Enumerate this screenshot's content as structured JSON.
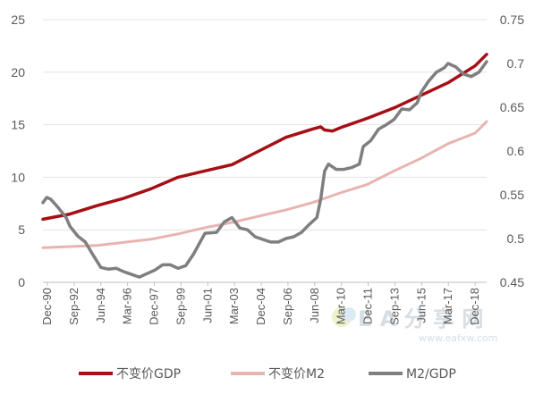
{
  "chart_data": {
    "type": "line",
    "title": "",
    "xlabel": "",
    "ylabel": "",
    "grid": true,
    "legend_position": "bottom",
    "left_axis": {
      "min": 0,
      "max": 25,
      "ticks": [
        "0",
        "5",
        "10",
        "15",
        "20",
        "25"
      ]
    },
    "right_axis": {
      "min": 0.45,
      "max": 0.75,
      "ticks": [
        "0.45",
        "0.5",
        "0.55",
        "0.6",
        "0.65",
        "0.7",
        "0.75"
      ]
    },
    "x_tick_labels": [
      "Dec-90",
      "Sep-92",
      "Jun-94",
      "Mar-96",
      "Dec-97",
      "Sep-99",
      "Jun-01",
      "Mar-03",
      "Dec-04",
      "Sep-06",
      "Jun-08",
      "Mar-10",
      "Dec-11",
      "Sep-13",
      "Jun-15",
      "Mar-17",
      "Dec-18"
    ],
    "x_range": [
      "1990-12",
      "2019-09"
    ],
    "series": [
      {
        "name": "不变价GDP",
        "axis": "left",
        "color": "#a50f15",
        "points": [
          [
            "1990-12",
            6.0
          ],
          [
            "1992-09",
            6.5
          ],
          [
            "1994-06",
            7.3
          ],
          [
            "1996-03",
            8.0
          ],
          [
            "1997-12",
            8.9
          ],
          [
            "1999-09",
            10.0
          ],
          [
            "2001-06",
            10.6
          ],
          [
            "2003-03",
            11.2
          ],
          [
            "2004-12",
            12.5
          ],
          [
            "2006-09",
            13.8
          ],
          [
            "2008-06",
            14.6
          ],
          [
            "2008-12",
            14.8
          ],
          [
            "2009-03",
            14.5
          ],
          [
            "2009-09",
            14.4
          ],
          [
            "2010-03",
            14.7
          ],
          [
            "2011-12",
            15.6
          ],
          [
            "2013-09",
            16.6
          ],
          [
            "2015-06",
            17.8
          ],
          [
            "2017-03",
            19.0
          ],
          [
            "2018-12",
            20.6
          ],
          [
            "2019-09",
            21.7
          ]
        ]
      },
      {
        "name": "不变价M2",
        "axis": "left",
        "color": "#e8b4b0",
        "points": [
          [
            "1990-12",
            3.3
          ],
          [
            "1992-09",
            3.4
          ],
          [
            "1994-06",
            3.5
          ],
          [
            "1996-03",
            3.8
          ],
          [
            "1997-12",
            4.1
          ],
          [
            "1999-09",
            4.6
          ],
          [
            "2001-06",
            5.2
          ],
          [
            "2003-03",
            5.7
          ],
          [
            "2004-12",
            6.3
          ],
          [
            "2006-09",
            6.9
          ],
          [
            "2008-06",
            7.6
          ],
          [
            "2010-03",
            8.5
          ],
          [
            "2011-12",
            9.3
          ],
          [
            "2013-09",
            10.6
          ],
          [
            "2015-06",
            11.8
          ],
          [
            "2017-03",
            13.2
          ],
          [
            "2018-12",
            14.2
          ],
          [
            "2019-09",
            15.3
          ]
        ]
      },
      {
        "name": "M2/GDP",
        "axis": "right",
        "color": "#7f7f7f",
        "points": [
          [
            "1990-12",
            0.541
          ],
          [
            "1991-03",
            0.547
          ],
          [
            "1991-06",
            0.545
          ],
          [
            "1991-12",
            0.535
          ],
          [
            "1992-06",
            0.524
          ],
          [
            "1992-09",
            0.514
          ],
          [
            "1993-03",
            0.503
          ],
          [
            "1993-09",
            0.496
          ],
          [
            "1994-03",
            0.481
          ],
          [
            "1994-09",
            0.467
          ],
          [
            "1995-03",
            0.465
          ],
          [
            "1995-09",
            0.466
          ],
          [
            "1996-03",
            0.462
          ],
          [
            "1996-09",
            0.459
          ],
          [
            "1997-03",
            0.456
          ],
          [
            "1997-09",
            0.46
          ],
          [
            "1998-03",
            0.464
          ],
          [
            "1998-09",
            0.47
          ],
          [
            "1999-03",
            0.47
          ],
          [
            "1999-09",
            0.466
          ],
          [
            "2000-03",
            0.469
          ],
          [
            "2000-09",
            0.482
          ],
          [
            "2001-06",
            0.506
          ],
          [
            "2002-03",
            0.507
          ],
          [
            "2002-09",
            0.519
          ],
          [
            "2003-03",
            0.524
          ],
          [
            "2003-09",
            0.512
          ],
          [
            "2004-03",
            0.51
          ],
          [
            "2004-09",
            0.502
          ],
          [
            "2005-03",
            0.499
          ],
          [
            "2005-09",
            0.496
          ],
          [
            "2006-03",
            0.496
          ],
          [
            "2006-09",
            0.5
          ],
          [
            "2007-03",
            0.502
          ],
          [
            "2007-09",
            0.507
          ],
          [
            "2008-03",
            0.516
          ],
          [
            "2008-09",
            0.524
          ],
          [
            "2008-12",
            0.545
          ],
          [
            "2009-03",
            0.577
          ],
          [
            "2009-06",
            0.585
          ],
          [
            "2009-12",
            0.579
          ],
          [
            "2010-06",
            0.579
          ],
          [
            "2010-12",
            0.581
          ],
          [
            "2011-06",
            0.585
          ],
          [
            "2011-09",
            0.605
          ],
          [
            "2012-03",
            0.612
          ],
          [
            "2012-09",
            0.625
          ],
          [
            "2013-03",
            0.63
          ],
          [
            "2013-09",
            0.636
          ],
          [
            "2014-03",
            0.648
          ],
          [
            "2014-09",
            0.647
          ],
          [
            "2015-03",
            0.655
          ],
          [
            "2015-06",
            0.667
          ],
          [
            "2015-12",
            0.68
          ],
          [
            "2016-06",
            0.69
          ],
          [
            "2016-12",
            0.695
          ],
          [
            "2017-03",
            0.7
          ],
          [
            "2017-09",
            0.696
          ],
          [
            "2018-03",
            0.688
          ],
          [
            "2018-09",
            0.685
          ],
          [
            "2019-03",
            0.69
          ],
          [
            "2019-09",
            0.702
          ]
        ]
      }
    ]
  },
  "watermark": {
    "text": "E A 分 享 网",
    "sub": "www.eafxw.com"
  }
}
